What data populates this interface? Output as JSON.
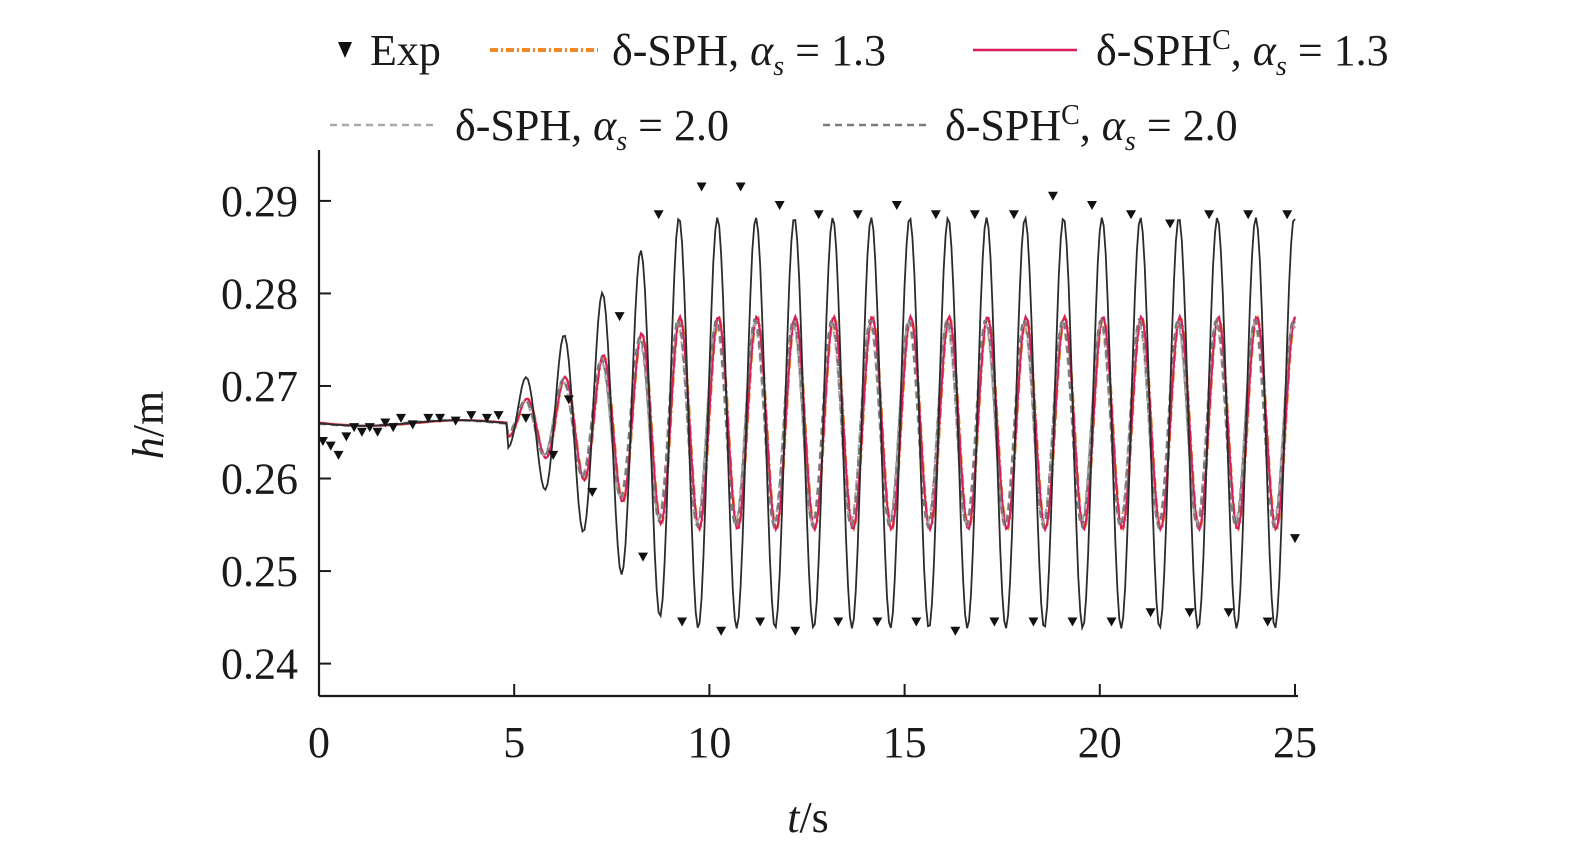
{
  "chart_data": {
    "type": "line",
    "xlabel": {
      "var": "t",
      "unit": "/s"
    },
    "ylabel": {
      "var": "h",
      "unit": "/m"
    },
    "xlim": [
      0,
      25
    ],
    "ylim": [
      0.2365,
      0.2955
    ],
    "x_ticks": [
      "0",
      "5",
      "10",
      "15",
      "20",
      "25"
    ],
    "x_tick_values": [
      0,
      5,
      10,
      15,
      20,
      25
    ],
    "y_ticks": [
      "0.24",
      "0.25",
      "0.26",
      "0.27",
      "0.28",
      "0.29"
    ],
    "y_tick_values": [
      0.24,
      0.25,
      0.26,
      0.27,
      0.28,
      0.29
    ],
    "grid": false,
    "legend_position": "top",
    "series": [
      {
        "name": "Exp",
        "kind": "scatter",
        "marker": "triangle-down",
        "color": "#111111",
        "x": [
          0.1,
          0.3,
          0.5,
          0.7,
          0.9,
          1.1,
          1.3,
          1.5,
          1.7,
          1.9,
          2.1,
          2.4,
          2.8,
          3.1,
          3.5,
          3.9,
          4.3,
          4.6,
          5.3,
          6.0,
          6.4,
          7.0,
          7.7,
          8.3,
          8.7,
          9.3,
          9.8,
          10.3,
          10.8,
          11.3,
          11.8,
          12.2,
          12.8,
          13.3,
          13.8,
          14.3,
          14.8,
          15.3,
          15.8,
          16.3,
          16.8,
          17.3,
          17.8,
          18.3,
          18.8,
          19.3,
          19.8,
          20.3,
          20.8,
          21.3,
          21.8,
          22.3,
          22.8,
          23.3,
          23.8,
          24.3,
          24.8,
          25.0
        ],
        "y": [
          0.264,
          0.2635,
          0.2625,
          0.2645,
          0.2655,
          0.265,
          0.2655,
          0.265,
          0.266,
          0.2655,
          0.2665,
          0.2658,
          0.2665,
          0.2665,
          0.2662,
          0.2668,
          0.2665,
          0.2668,
          0.2665,
          0.2625,
          0.2685,
          0.2585,
          0.2775,
          0.2515,
          0.2885,
          0.2445,
          0.2915,
          0.2435,
          0.2915,
          0.2445,
          0.2895,
          0.2435,
          0.2885,
          0.2445,
          0.2885,
          0.2445,
          0.2895,
          0.2445,
          0.2885,
          0.2435,
          0.2885,
          0.2445,
          0.2885,
          0.2445,
          0.2905,
          0.2445,
          0.2895,
          0.2445,
          0.2885,
          0.2455,
          0.2875,
          0.2455,
          0.2885,
          0.2455,
          0.2885,
          0.2445,
          0.2885,
          0.2535
        ]
      },
      {
        "name": "δ-SPH, α_s = 1.3",
        "kind": "line",
        "style": "dash-dot",
        "color": "#f08a24",
        "amp": 0.0115,
        "x_sample_step": 0.05
      },
      {
        "name": "δ-SPHC, α_s = 1.3",
        "kind": "line",
        "style": "solid",
        "color": "#d81e5b",
        "amp": 0.0115,
        "x_sample_step": 0.05
      },
      {
        "name": "δ-SPH, α_s = 2.0",
        "kind": "line",
        "style": "dashed",
        "color": "#a8a8a8",
        "amp": 0.0108,
        "x_sample_step": 0.05
      },
      {
        "name": "δ-SPHC, α_s = 2.0",
        "kind": "line",
        "style": "dashed",
        "color": "#7a7a7a",
        "amp": 0.0112,
        "x_sample_step": 0.05
      },
      {
        "name": "",
        "kind": "line",
        "style": "solid",
        "color": "#2b2b2b",
        "amp": 0.0222,
        "x_sample_step": 0.05
      }
    ]
  },
  "legend": [
    {
      "series": 0,
      "sym": "tri",
      "label": "Exp"
    },
    {
      "series": 1,
      "sym": "dashdot",
      "color": "#f08a24",
      "pre": "δ-SPH,",
      "eq": "= 1.3"
    },
    {
      "series": 2,
      "sym": "solid",
      "color": "#d81e5b",
      "pre": "δ-SPH",
      "sup": "C",
      "post": ",",
      "eq": "= 1.3"
    },
    {
      "series": 3,
      "sym": "dash",
      "color": "#a8a8a8",
      "pre": "δ-SPH,",
      "eq": "= 2.0"
    },
    {
      "series": 4,
      "sym": "dash",
      "color": "#7a7a7a",
      "pre": "δ-SPH",
      "sup": "C",
      "post": ",",
      "eq": "= 2.0"
    }
  ]
}
